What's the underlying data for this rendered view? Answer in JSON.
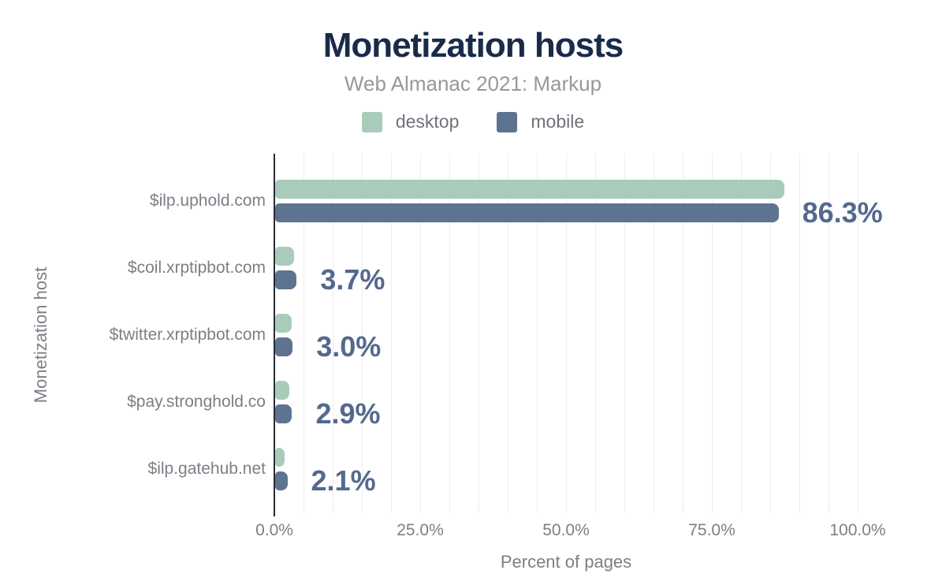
{
  "colors": {
    "background": "#ffffff",
    "title": "#1a2b49",
    "subtitle": "#94999e",
    "desktop": "#a9ccba",
    "mobile": "#5e7390",
    "value_label": "#53698e",
    "axis_text": "#7b8087",
    "legend_text": "#6e737a",
    "gridline": "#ededed",
    "axis_line": "#262b33"
  },
  "chart_data": {
    "type": "bar",
    "orientation": "horizontal",
    "title": "Monetization hosts",
    "subtitle": "Web Almanac 2021: Markup",
    "xlabel": "Percent of pages",
    "ylabel": "Monetization host",
    "categories": [
      "$ilp.uphold.com",
      "$coil.xrptipbot.com",
      "$twitter.xrptipbot.com",
      "$pay.stronghold.co",
      "$ilp.gatehub.net"
    ],
    "series": [
      {
        "name": "desktop",
        "color": "#a9ccba",
        "values": [
          87.3,
          3.2,
          2.9,
          2.4,
          1.6
        ]
      },
      {
        "name": "mobile",
        "color": "#5e7390",
        "values": [
          86.3,
          3.7,
          3.0,
          2.9,
          2.1
        ]
      }
    ],
    "value_labels": [
      "86.3%",
      "3.7%",
      "3.0%",
      "2.9%",
      "2.1%"
    ],
    "value_labels_series": "mobile",
    "x_ticks": [
      "0.0%",
      "25.0%",
      "50.0%",
      "75.0%",
      "100.0%"
    ],
    "x_tick_values": [
      0,
      25,
      50,
      75,
      100
    ],
    "xlim": [
      0,
      113
    ],
    "grid_step": 5,
    "grid": true,
    "legend_position": "top"
  }
}
